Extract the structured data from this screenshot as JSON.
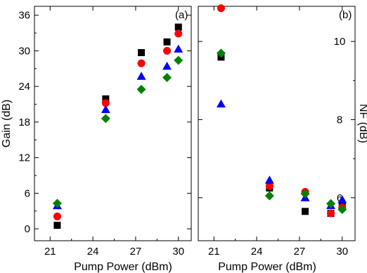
{
  "chart_data": [
    {
      "type": "scatter",
      "panel_label": "(a)",
      "xlabel": "Pump Power (dBm)",
      "ylabel": "Gain (dB)",
      "xlim": [
        19.9,
        30.9
      ],
      "ylim": [
        -2,
        37.5
      ],
      "xticks": [
        21,
        24,
        27,
        30
      ],
      "yticks": [
        0,
        6,
        12,
        18,
        24,
        30,
        36
      ],
      "series": [
        {
          "marker": "square",
          "color": "#000000",
          "x": [
            21.5,
            24.9,
            27.4,
            29.2,
            30.0
          ],
          "y": [
            0.6,
            21.9,
            29.7,
            31.5,
            34.0
          ]
        },
        {
          "marker": "circle",
          "color": "#ff0000",
          "x": [
            21.5,
            24.9,
            27.4,
            29.2,
            30.0
          ],
          "y": [
            2.1,
            21.2,
            27.9,
            30.0,
            32.9
          ]
        },
        {
          "marker": "triangle",
          "color": "#0000ff",
          "x": [
            21.5,
            24.9,
            27.4,
            29.2,
            30.0
          ],
          "y": [
            3.9,
            20.1,
            25.7,
            27.4,
            30.3
          ]
        },
        {
          "marker": "diamond",
          "color": "#008000",
          "x": [
            21.5,
            24.9,
            27.4,
            29.2,
            30.0
          ],
          "y": [
            4.3,
            18.6,
            23.5,
            25.5,
            28.4
          ]
        }
      ]
    },
    {
      "type": "scatter",
      "panel_label": "(b)",
      "xlabel": "Pump Power (dBm)",
      "ylabel": "NF (dB)",
      "xlim": [
        19.9,
        30.9
      ],
      "ylim": [
        4.9,
        10.9
      ],
      "xticks": [
        21,
        24,
        27,
        30
      ],
      "yticks": [
        6,
        8,
        10
      ],
      "series": [
        {
          "marker": "square",
          "color": "#000000",
          "x": [
            21.5,
            24.9,
            27.4,
            29.2,
            30.0
          ],
          "y": [
            9.6,
            6.25,
            5.65,
            5.6,
            5.8
          ]
        },
        {
          "marker": "circle",
          "color": "#ff0000",
          "x": [
            21.5,
            24.9,
            27.4,
            29.2,
            30.0
          ],
          "y": [
            10.85,
            6.3,
            6.15,
            5.6,
            5.75
          ]
        },
        {
          "marker": "triangle",
          "color": "#0000ff",
          "x": [
            21.5,
            24.9,
            27.4,
            29.2,
            30.0
          ],
          "y": [
            8.4,
            6.45,
            6.0,
            5.8,
            5.95
          ]
        },
        {
          "marker": "diamond",
          "color": "#008000",
          "x": [
            21.5,
            24.9,
            27.4,
            29.2,
            30.0
          ],
          "y": [
            9.7,
            6.05,
            6.1,
            5.85,
            5.7
          ]
        }
      ]
    }
  ]
}
